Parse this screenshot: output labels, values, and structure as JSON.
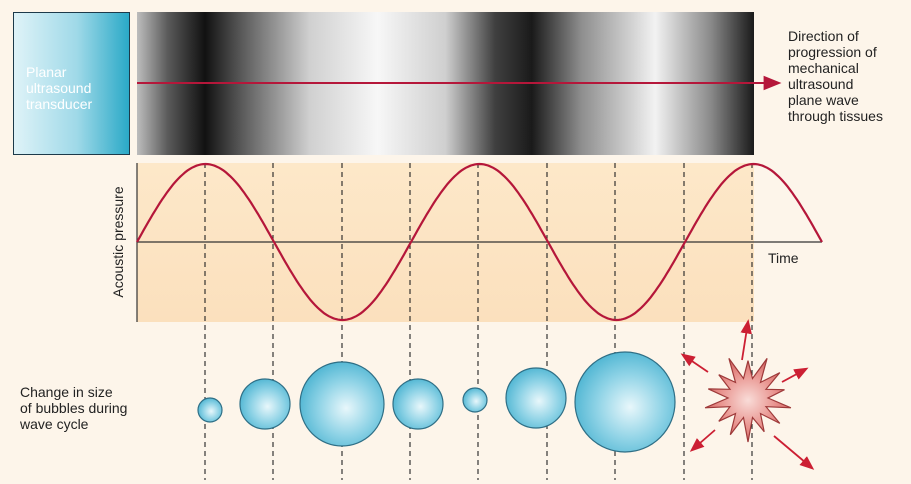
{
  "labels": {
    "transducer": [
      "Planar",
      "ultrasound",
      "transducer"
    ],
    "direction": [
      "Direction of",
      "progression of",
      "mechanical",
      "ultrasound",
      "plane wave",
      "through tissues"
    ],
    "y_axis": "Acoustic pressure",
    "x_axis": "Time",
    "bubbles": [
      "Change in size",
      "of bubbles during",
      "wave cycle"
    ]
  },
  "wave": {
    "cycles": 2.5
  },
  "bubbles": {
    "relative_radius": [
      0.25,
      0.5,
      0.84,
      0.5,
      0.25,
      0.6,
      1.0
    ],
    "final_state": "collapse-burst"
  },
  "colors": {
    "wave_curve": "#b5173a",
    "arrow": "#b5173a",
    "bubble_fill": "#5fc1dd",
    "bubble_highlight": "#e8f7fb",
    "burst_fill": "#e0716f",
    "burst_arrows": "#cc1f33",
    "transducer_fill": "#2aa9c7",
    "plot_band": "#fbe3c2"
  }
}
